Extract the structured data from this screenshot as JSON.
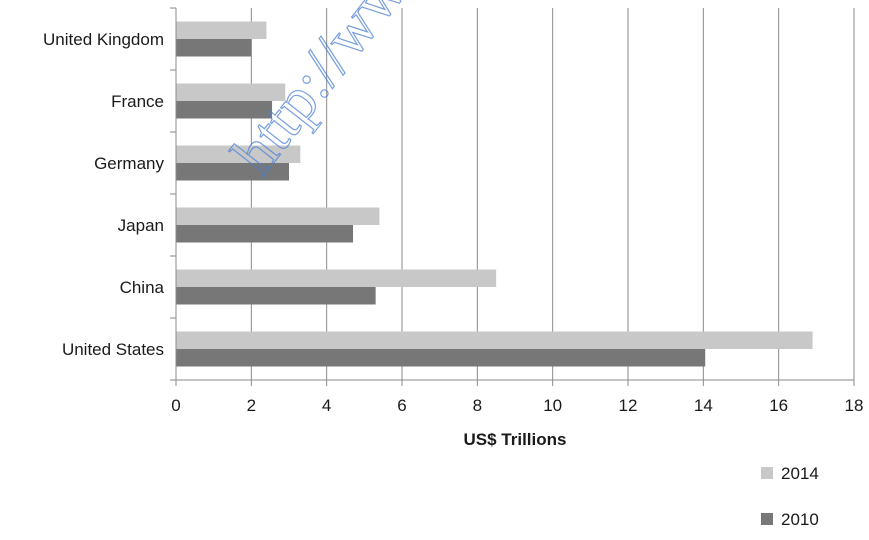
{
  "chart_data": {
    "type": "bar",
    "orientation": "horizontal",
    "title": "",
    "xlabel": "US$ Trillions",
    "ylabel": "",
    "xlim": [
      0,
      18
    ],
    "x_ticks": [
      0,
      2,
      4,
      6,
      8,
      10,
      12,
      14,
      16,
      18
    ],
    "grid": "vertical",
    "legend_position": "bottom-right",
    "categories": [
      "United Kingdom",
      "France",
      "Germany",
      "Japan",
      "China",
      "United States"
    ],
    "series": [
      {
        "name": "2014",
        "color": "#c8c8c8",
        "values": [
          2.4,
          2.9,
          3.3,
          5.4,
          8.5,
          16.9
        ]
      },
      {
        "name": "2010",
        "color": "#777777",
        "values": [
          2.0,
          2.55,
          3.0,
          4.7,
          5.3,
          14.05
        ]
      }
    ]
  },
  "watermark": {
    "text": "http://www.",
    "color": "#4a7fd6"
  }
}
